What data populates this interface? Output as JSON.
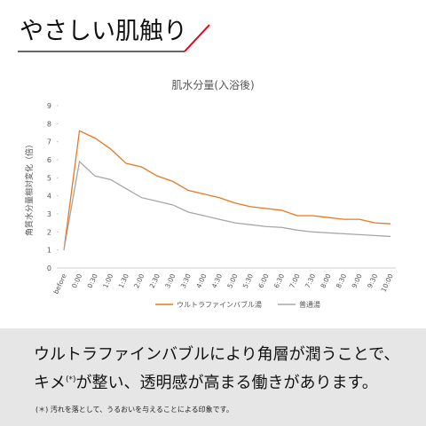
{
  "header": {
    "title": "やさしい肌触り"
  },
  "chart_data": {
    "type": "line",
    "title": "肌水分量(入浴後)",
    "y_label": "角質水分量相対変化（倍）",
    "categories": [
      "before",
      "0:00",
      "0:30",
      "1:00",
      "1:30",
      "2:00",
      "2:30",
      "3:00",
      "3:30",
      "4:00",
      "4:30",
      "5:00",
      "5:30",
      "6:00",
      "6:30",
      "7:00",
      "7:30",
      "8:00",
      "8:30",
      "9:00",
      "9:30",
      "10:00"
    ],
    "series": [
      {
        "name": "ウルトラファインバブル湯",
        "color": "#e87722",
        "values": [
          1.0,
          7.6,
          7.2,
          6.6,
          5.8,
          5.6,
          5.1,
          4.8,
          4.3,
          4.1,
          3.9,
          3.6,
          3.4,
          3.3,
          3.2,
          2.9,
          2.9,
          2.8,
          2.7,
          2.7,
          2.5,
          2.45
        ]
      },
      {
        "name": "普通湯",
        "color": "#a6a6a6",
        "values": [
          1.0,
          5.9,
          5.1,
          4.9,
          4.4,
          3.9,
          3.7,
          3.5,
          3.1,
          2.9,
          2.7,
          2.5,
          2.4,
          2.3,
          2.25,
          2.1,
          2.0,
          1.95,
          1.9,
          1.85,
          1.8,
          1.75
        ]
      }
    ],
    "ylim": [
      0,
      9
    ],
    "yticks": [
      0,
      1,
      2,
      3,
      4,
      5,
      6,
      7,
      8,
      9
    ],
    "grid": false,
    "legend": "bottom"
  },
  "caption": {
    "line1": "ウルトラファインバブルにより角層が潤うことで、",
    "line2a": "キメ",
    "line2sup": "(*)",
    "line2b": "が整い、透明感が高まる働きがあります。",
    "note": "(＊) 汚れを落として、うるおいを与えることによる印象です。"
  }
}
